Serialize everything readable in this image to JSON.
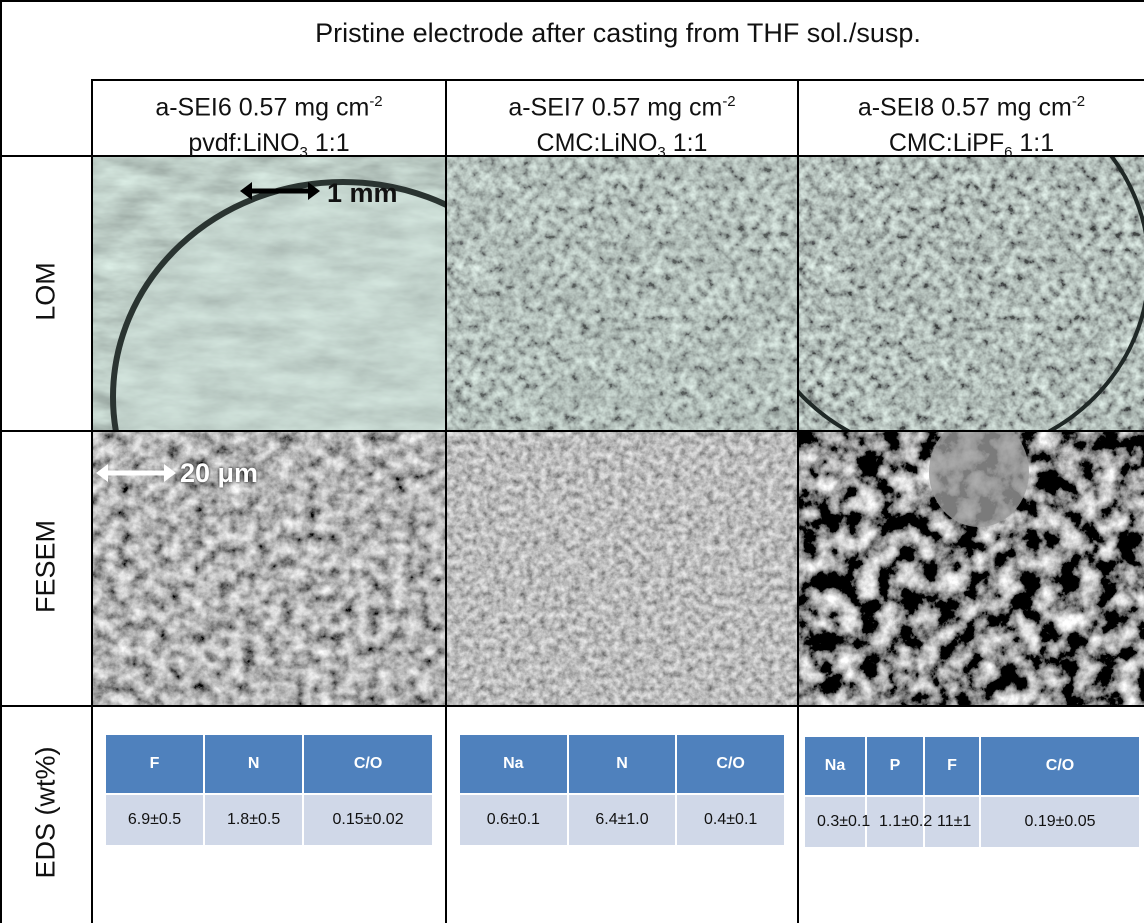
{
  "header": {
    "title": "Pristine electrode after casting from THF sol./susp."
  },
  "columns": [
    {
      "name": "a-SEI6 0.57 mg cm",
      "sup": "-2",
      "binder": "pvdf:LiNO",
      "sub": "3",
      "ratio": "1:1"
    },
    {
      "name": "a-SEI7 0.57 mg cm",
      "sup": "-2",
      "binder": "CMC:LiNO",
      "sub": "3",
      "ratio": "1:1"
    },
    {
      "name": "a-SEI8 0.57 mg cm",
      "sup": "-2",
      "binder": "CMC:LiPF",
      "sub": "6",
      "ratio": "1:1"
    }
  ],
  "rows": [
    "LOM",
    "FESEM",
    "EDS (wt%)"
  ],
  "scale_bars": [
    "1 mm",
    "20 μm"
  ],
  "eds": [
    {
      "headers": [
        "F",
        "N",
        "C/O"
      ],
      "values": [
        "6.9±0.5",
        "1.8±0.5",
        "0.15±0.02"
      ]
    },
    {
      "headers": [
        "Na",
        "N",
        "C/O"
      ],
      "values": [
        "0.6±0.1",
        "6.4±1.0",
        "0.4±0.1"
      ]
    },
    {
      "headers": [
        "Na",
        "P",
        "F",
        "C/O"
      ],
      "values": [
        "0.3±0.1",
        "1.1±0.2",
        "11±1",
        "0.19±0.05"
      ]
    }
  ]
}
